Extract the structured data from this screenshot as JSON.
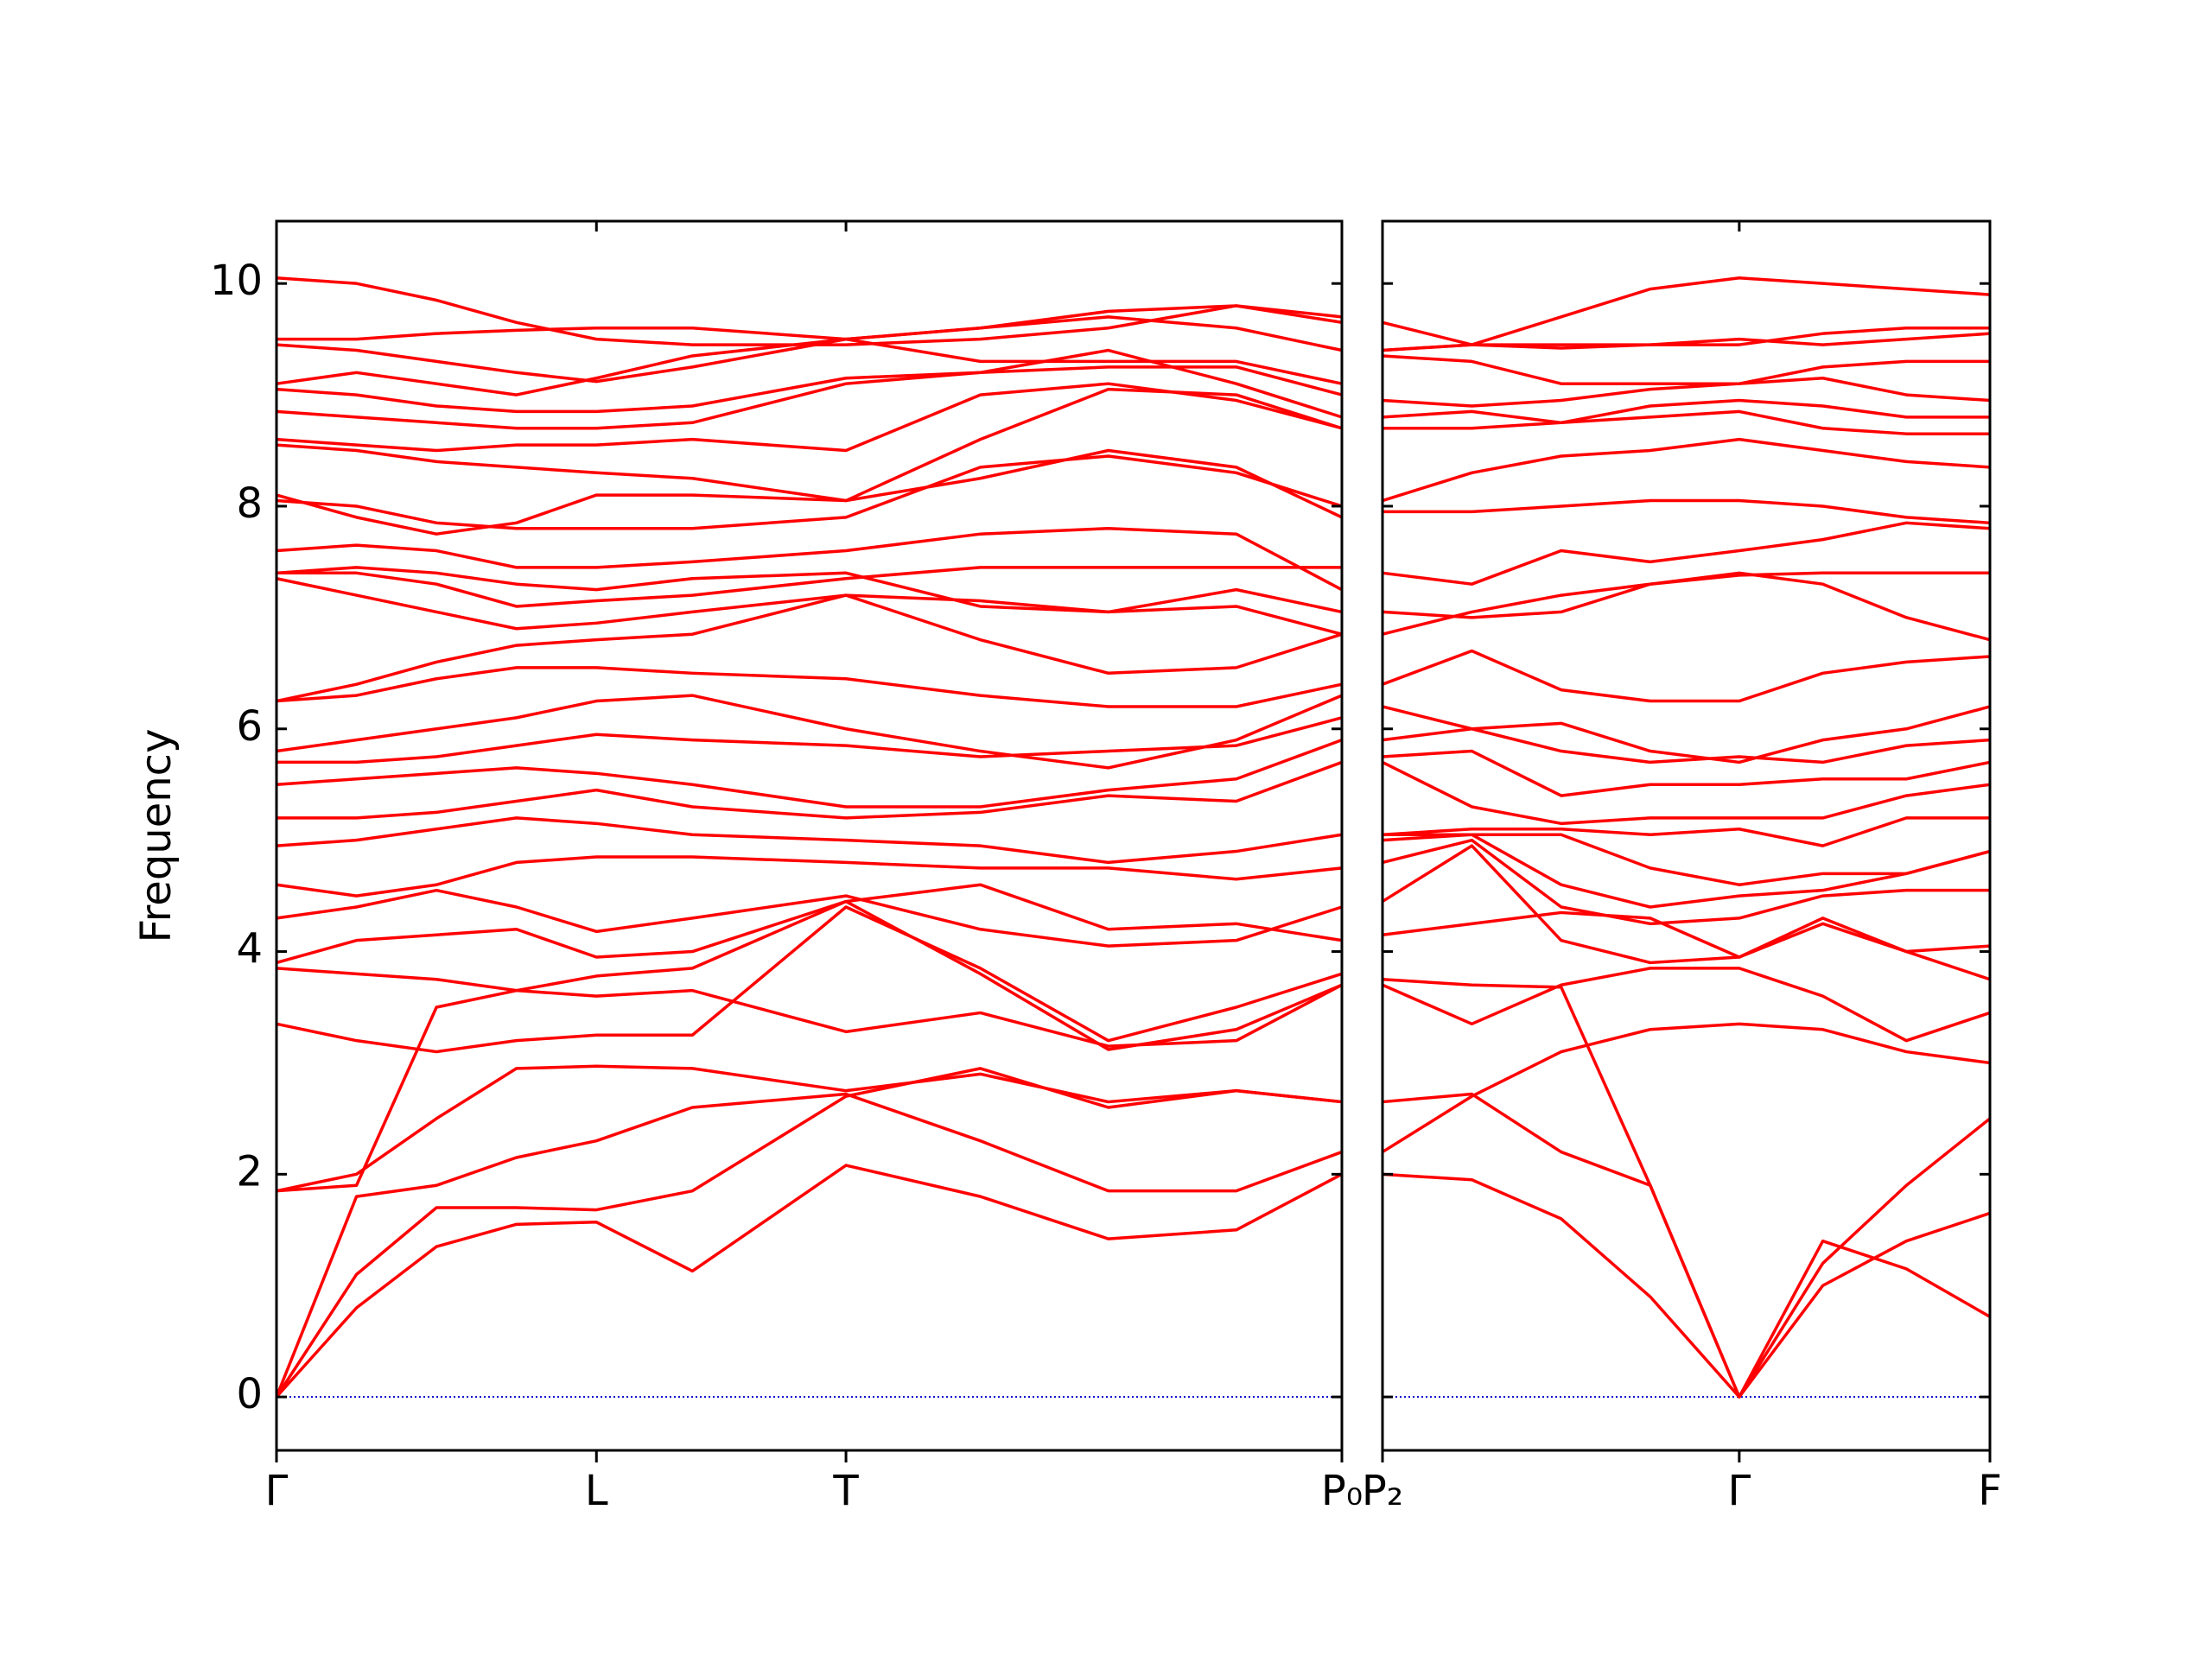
{
  "chart_data": [
    {
      "type": "line",
      "ylabel": "Frequency",
      "color": "#ff0000",
      "zero_line_color": "#0000cd",
      "xlim": [
        0,
        3.33
      ],
      "ylim": [
        -0.48,
        10.56
      ],
      "yticks": [
        0,
        2,
        4,
        6,
        8,
        10
      ],
      "ytick_labels": true,
      "xticks": [
        {
          "value": 0,
          "label": "Γ"
        },
        {
          "value": 1,
          "label": "L"
        },
        {
          "value": 1.78,
          "label": "T"
        },
        {
          "value": 3.33,
          "label": "P₀"
        }
      ],
      "x": [
        0,
        0.25,
        0.5,
        0.75,
        1,
        1.3,
        1.78,
        2.2,
        2.6,
        3.0,
        3.33
      ],
      "series": [
        {
          "values": [
            0,
            0.8,
            1.35,
            1.55,
            1.57,
            1.13,
            2.08,
            1.8,
            1.42,
            1.5,
            2.0
          ]
        },
        {
          "values": [
            0,
            1.1,
            1.7,
            1.7,
            1.68,
            1.85,
            2.7,
            2.95,
            2.6,
            2.75,
            2.65
          ]
        },
        {
          "values": [
            0,
            1.8,
            1.9,
            2.15,
            2.3,
            2.6,
            2.72,
            2.3,
            1.85,
            1.85,
            2.2
          ]
        },
        {
          "values": [
            1.85,
            1.9,
            3.5,
            3.65,
            3.6,
            3.65,
            3.28,
            3.45,
            3.15,
            3.2,
            3.7
          ]
        },
        {
          "values": [
            1.85,
            2.0,
            2.5,
            2.95,
            2.97,
            2.95,
            2.75,
            2.9,
            2.65,
            2.75,
            2.65
          ]
        },
        {
          "values": [
            3.35,
            3.2,
            3.1,
            3.2,
            3.25,
            3.25,
            4.4,
            3.85,
            3.2,
            3.5,
            3.8
          ]
        },
        {
          "values": [
            3.85,
            3.8,
            3.75,
            3.65,
            3.78,
            3.85,
            4.45,
            3.8,
            3.12,
            3.3,
            3.7
          ]
        },
        {
          "values": [
            3.9,
            4.1,
            4.15,
            4.2,
            3.95,
            4.0,
            4.45,
            4.6,
            4.2,
            4.25,
            4.1
          ]
        },
        {
          "values": [
            4.3,
            4.4,
            4.55,
            4.4,
            4.18,
            4.3,
            4.5,
            4.2,
            4.05,
            4.1,
            4.4
          ]
        },
        {
          "values": [
            4.6,
            4.5,
            4.6,
            4.8,
            4.85,
            4.85,
            4.8,
            4.75,
            4.75,
            4.65,
            4.75
          ]
        },
        {
          "values": [
            4.95,
            5.0,
            5.1,
            5.2,
            5.15,
            5.05,
            5.0,
            4.95,
            4.8,
            4.9,
            5.05
          ]
        },
        {
          "values": [
            5.2,
            5.2,
            5.25,
            5.35,
            5.45,
            5.3,
            5.2,
            5.25,
            5.4,
            5.35,
            5.7
          ]
        },
        {
          "values": [
            5.5,
            5.55,
            5.6,
            5.65,
            5.6,
            5.5,
            5.3,
            5.3,
            5.45,
            5.55,
            5.9
          ]
        },
        {
          "values": [
            5.7,
            5.7,
            5.75,
            5.85,
            5.95,
            5.9,
            5.85,
            5.75,
            5.8,
            5.85,
            6.1
          ]
        },
        {
          "values": [
            5.8,
            5.9,
            6.0,
            6.1,
            6.25,
            6.3,
            6.0,
            5.8,
            5.65,
            5.9,
            6.3
          ]
        },
        {
          "values": [
            6.25,
            6.3,
            6.45,
            6.55,
            6.55,
            6.5,
            6.45,
            6.3,
            6.2,
            6.2,
            6.4
          ]
        },
        {
          "values": [
            6.25,
            6.4,
            6.6,
            6.75,
            6.8,
            6.85,
            7.2,
            7.15,
            7.05,
            7.1,
            6.85
          ]
        },
        {
          "values": [
            7.35,
            7.2,
            7.05,
            6.9,
            6.95,
            7.05,
            7.2,
            6.8,
            6.5,
            6.55,
            6.85
          ]
        },
        {
          "values": [
            7.4,
            7.4,
            7.3,
            7.1,
            7.15,
            7.2,
            7.35,
            7.45,
            7.45,
            7.45,
            7.45
          ]
        },
        {
          "values": [
            7.4,
            7.45,
            7.4,
            7.3,
            7.25,
            7.35,
            7.4,
            7.1,
            7.05,
            7.25,
            7.05
          ]
        },
        {
          "values": [
            7.6,
            7.65,
            7.6,
            7.45,
            7.45,
            7.5,
            7.6,
            7.75,
            7.8,
            7.75,
            7.25
          ]
        },
        {
          "values": [
            8.05,
            8.0,
            7.85,
            7.8,
            7.8,
            7.8,
            7.9,
            8.35,
            8.45,
            8.3,
            8.0
          ]
        },
        {
          "values": [
            8.1,
            7.9,
            7.75,
            7.85,
            8.1,
            8.1,
            8.05,
            8.25,
            8.5,
            8.35,
            7.9
          ]
        },
        {
          "values": [
            8.55,
            8.5,
            8.4,
            8.35,
            8.3,
            8.25,
            8.05,
            8.6,
            9.05,
            9.0,
            8.7
          ]
        },
        {
          "values": [
            8.6,
            8.55,
            8.5,
            8.55,
            8.55,
            8.6,
            8.5,
            9.0,
            9.1,
            8.95,
            8.7
          ]
        },
        {
          "values": [
            8.85,
            8.8,
            8.75,
            8.7,
            8.7,
            8.75,
            9.1,
            9.2,
            9.4,
            9.1,
            8.8
          ]
        },
        {
          "values": [
            9.05,
            9.0,
            8.9,
            8.85,
            8.85,
            8.9,
            9.15,
            9.2,
            9.25,
            9.25,
            9.0
          ]
        },
        {
          "values": [
            9.1,
            9.2,
            9.1,
            9.0,
            9.15,
            9.35,
            9.5,
            9.3,
            9.3,
            9.3,
            9.1
          ]
        },
        {
          "values": [
            9.45,
            9.4,
            9.3,
            9.2,
            9.12,
            9.25,
            9.5,
            9.6,
            9.7,
            9.6,
            9.4
          ]
        },
        {
          "values": [
            9.5,
            9.5,
            9.55,
            9.58,
            9.6,
            9.6,
            9.5,
            9.6,
            9.75,
            9.8,
            9.7
          ]
        },
        {
          "values": [
            10.05,
            10.0,
            9.85,
            9.65,
            9.5,
            9.45,
            9.45,
            9.5,
            9.6,
            9.8,
            9.65
          ]
        }
      ]
    },
    {
      "type": "line",
      "color": "#ff0000",
      "zero_line_color": "#0000cd",
      "xlim": [
        0,
        1.89
      ],
      "ylim": [
        -0.48,
        10.56
      ],
      "yticks": [
        0,
        2,
        4,
        6,
        8,
        10
      ],
      "ytick_labels": false,
      "xticks": [
        {
          "value": 0,
          "label": "P₂"
        },
        {
          "value": 1.11,
          "label": "Γ"
        },
        {
          "value": 1.89,
          "label": "F"
        }
      ],
      "x": [
        0,
        0.278,
        0.556,
        0.833,
        1.11,
        1.37,
        1.63,
        1.89
      ],
      "series": [
        {
          "values": [
            2.0,
            1.95,
            1.6,
            0.9,
            0,
            1.0,
            1.4,
            1.65
          ]
        },
        {
          "values": [
            2.65,
            2.72,
            2.2,
            1.9,
            0,
            1.4,
            1.15,
            0.72
          ]
        },
        {
          "values": [
            3.75,
            3.7,
            3.68,
            1.9,
            0,
            1.2,
            1.9,
            2.5
          ]
        },
        {
          "values": [
            2.2,
            2.7,
            3.1,
            3.3,
            3.35,
            3.3,
            3.1,
            3.0
          ]
        },
        {
          "values": [
            3.7,
            3.35,
            3.7,
            3.85,
            3.85,
            3.6,
            3.2,
            3.45
          ]
        },
        {
          "values": [
            4.15,
            4.25,
            4.35,
            4.3,
            3.95,
            4.25,
            4.0,
            3.75
          ]
        },
        {
          "values": [
            4.45,
            4.95,
            4.1,
            3.9,
            3.95,
            4.3,
            4.0,
            4.05
          ]
        },
        {
          "values": [
            4.8,
            5.0,
            4.4,
            4.25,
            4.3,
            4.5,
            4.55,
            4.55
          ]
        },
        {
          "values": [
            5.0,
            5.05,
            4.6,
            4.4,
            4.5,
            4.55,
            4.7,
            4.9
          ]
        },
        {
          "values": [
            5.05,
            5.05,
            5.05,
            4.75,
            4.6,
            4.7,
            4.7,
            4.9
          ]
        },
        {
          "values": [
            5.05,
            5.1,
            5.1,
            5.05,
            5.1,
            4.95,
            5.2,
            5.2
          ]
        },
        {
          "values": [
            5.7,
            5.3,
            5.15,
            5.2,
            5.2,
            5.2,
            5.4,
            5.5
          ]
        },
        {
          "values": [
            5.75,
            5.8,
            5.4,
            5.5,
            5.5,
            5.55,
            5.55,
            5.7
          ]
        },
        {
          "values": [
            5.9,
            6.0,
            5.8,
            5.7,
            5.75,
            5.7,
            5.85,
            5.9
          ]
        },
        {
          "values": [
            6.2,
            6.0,
            6.05,
            5.8,
            5.7,
            5.9,
            6.0,
            6.2
          ]
        },
        {
          "values": [
            6.4,
            6.7,
            6.35,
            6.25,
            6.25,
            6.5,
            6.6,
            6.65
          ]
        },
        {
          "values": [
            6.85,
            7.05,
            7.2,
            7.3,
            7.4,
            7.3,
            7.0,
            6.8
          ]
        },
        {
          "values": [
            7.05,
            7.0,
            7.05,
            7.3,
            7.38,
            7.4,
            7.4,
            7.4
          ]
        },
        {
          "values": [
            7.4,
            7.3,
            7.6,
            7.5,
            7.6,
            7.7,
            7.85,
            7.8
          ]
        },
        {
          "values": [
            7.95,
            7.95,
            8.0,
            8.05,
            8.05,
            8.0,
            7.9,
            7.85
          ]
        },
        {
          "values": [
            8.05,
            8.3,
            8.45,
            8.5,
            8.6,
            8.5,
            8.4,
            8.35
          ]
        },
        {
          "values": [
            8.7,
            8.7,
            8.75,
            8.8,
            8.85,
            8.7,
            8.65,
            8.65
          ]
        },
        {
          "values": [
            8.8,
            8.85,
            8.75,
            8.9,
            8.95,
            8.9,
            8.8,
            8.8
          ]
        },
        {
          "values": [
            8.95,
            8.9,
            8.95,
            9.05,
            9.1,
            9.15,
            9.0,
            8.95
          ]
        },
        {
          "values": [
            9.35,
            9.3,
            9.1,
            9.1,
            9.1,
            9.25,
            9.3,
            9.3
          ]
        },
        {
          "values": [
            9.4,
            9.45,
            9.42,
            9.45,
            9.5,
            9.45,
            9.5,
            9.55
          ]
        },
        {
          "values": [
            9.65,
            9.45,
            9.7,
            9.95,
            10.05,
            10.0,
            9.95,
            9.9
          ]
        },
        {
          "values": [
            9.4,
            9.45,
            9.45,
            9.45,
            9.45,
            9.55,
            9.6,
            9.6
          ]
        }
      ]
    }
  ]
}
